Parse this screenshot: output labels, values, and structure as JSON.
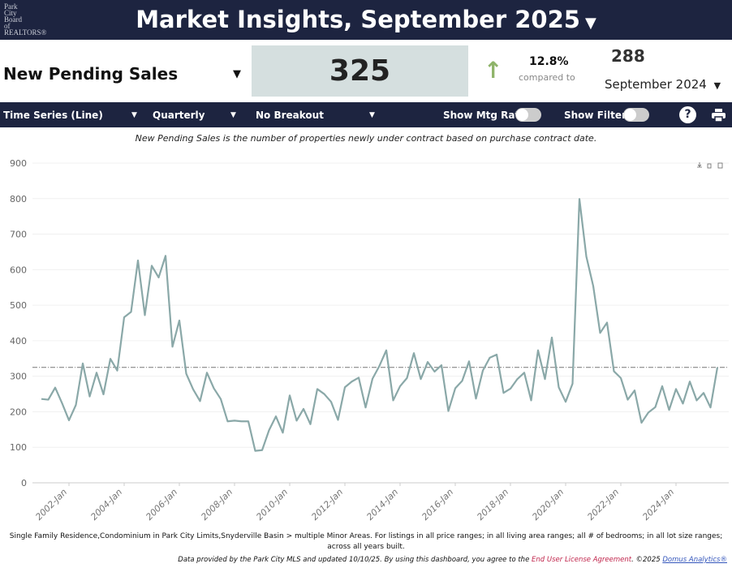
{
  "header": {
    "logo_lines": [
      "Park",
      "City",
      "Board",
      "of",
      "REALTORS®"
    ],
    "title": "Market Insights, September 2025"
  },
  "metric": {
    "name": "New Pending Sales",
    "value": "325",
    "change_pct": "12.8%",
    "compared_label": "compared to",
    "prior_value": "288",
    "prior_period": "September 2024",
    "arrow_color": "#8fb46a"
  },
  "toolbar": {
    "chart_type": "Time Series (Line)",
    "interval": "Quarterly",
    "breakout": "No Breakout",
    "mtg_rate_label": "Show Mtg Rate:",
    "filters_label": "Show Filters:",
    "help": "?"
  },
  "description": "New Pending Sales is the number of properties newly under contract based on purchase contract date.",
  "chart_data": {
    "type": "line",
    "title": "",
    "xlabel": "",
    "ylabel": "",
    "ylim": [
      0,
      900
    ],
    "yticks": [
      0,
      100,
      200,
      300,
      400,
      500,
      600,
      700,
      800,
      900
    ],
    "x_start": "2001-Q1",
    "x_end": "2025-Q3",
    "interval": "quarterly",
    "xtick_labels": [
      "2002-Jan",
      "2004-Jan",
      "2006-Jan",
      "2008-Jan",
      "2010-Jan",
      "2012-Jan",
      "2014-Jan",
      "2016-Jan",
      "2018-Jan",
      "2020-Jan",
      "2022-Jan",
      "2024-Jan"
    ],
    "reference_line": 325,
    "series": [
      {
        "name": "New Pending Sales",
        "color": "#8aa8a8",
        "values": [
          236,
          234,
          268,
          224,
          176,
          219,
          336,
          243,
          310,
          249,
          349,
          316,
          466,
          481,
          626,
          472,
          611,
          578,
          639,
          383,
          457,
          307,
          263,
          230,
          310,
          266,
          236,
          173,
          175,
          173,
          173,
          90,
          92,
          148,
          187,
          141,
          246,
          175,
          208,
          165,
          264,
          250,
          228,
          177,
          269,
          285,
          296,
          212,
          293,
          329,
          373,
          232,
          272,
          295,
          365,
          292,
          340,
          313,
          331,
          202,
          266,
          287,
          342,
          237,
          316,
          352,
          361,
          253,
          265,
          292,
          310,
          232,
          373,
          292,
          409,
          269,
          228,
          279,
          799,
          637,
          554,
          422,
          451,
          314,
          295,
          234,
          260,
          169,
          198,
          213,
          272,
          205,
          264,
          223,
          285,
          232,
          253,
          212,
          325
        ]
      }
    ]
  },
  "footnote": "Single Family Residence,Condominium in Park City Limits,Snyderville Basin > multiple Minor Areas. For listings in all price ranges; in all living area ranges; all # of bedrooms; in all lot size ranges; across all years built.",
  "footer": {
    "text": "Data provided by the Park City MLS and updated 10/10/25.  By using this dashboard, you agree to the ",
    "eula": "End User License Agreement",
    "copyright": ".  ©2025 ",
    "brand": "Domus Analytics®"
  }
}
